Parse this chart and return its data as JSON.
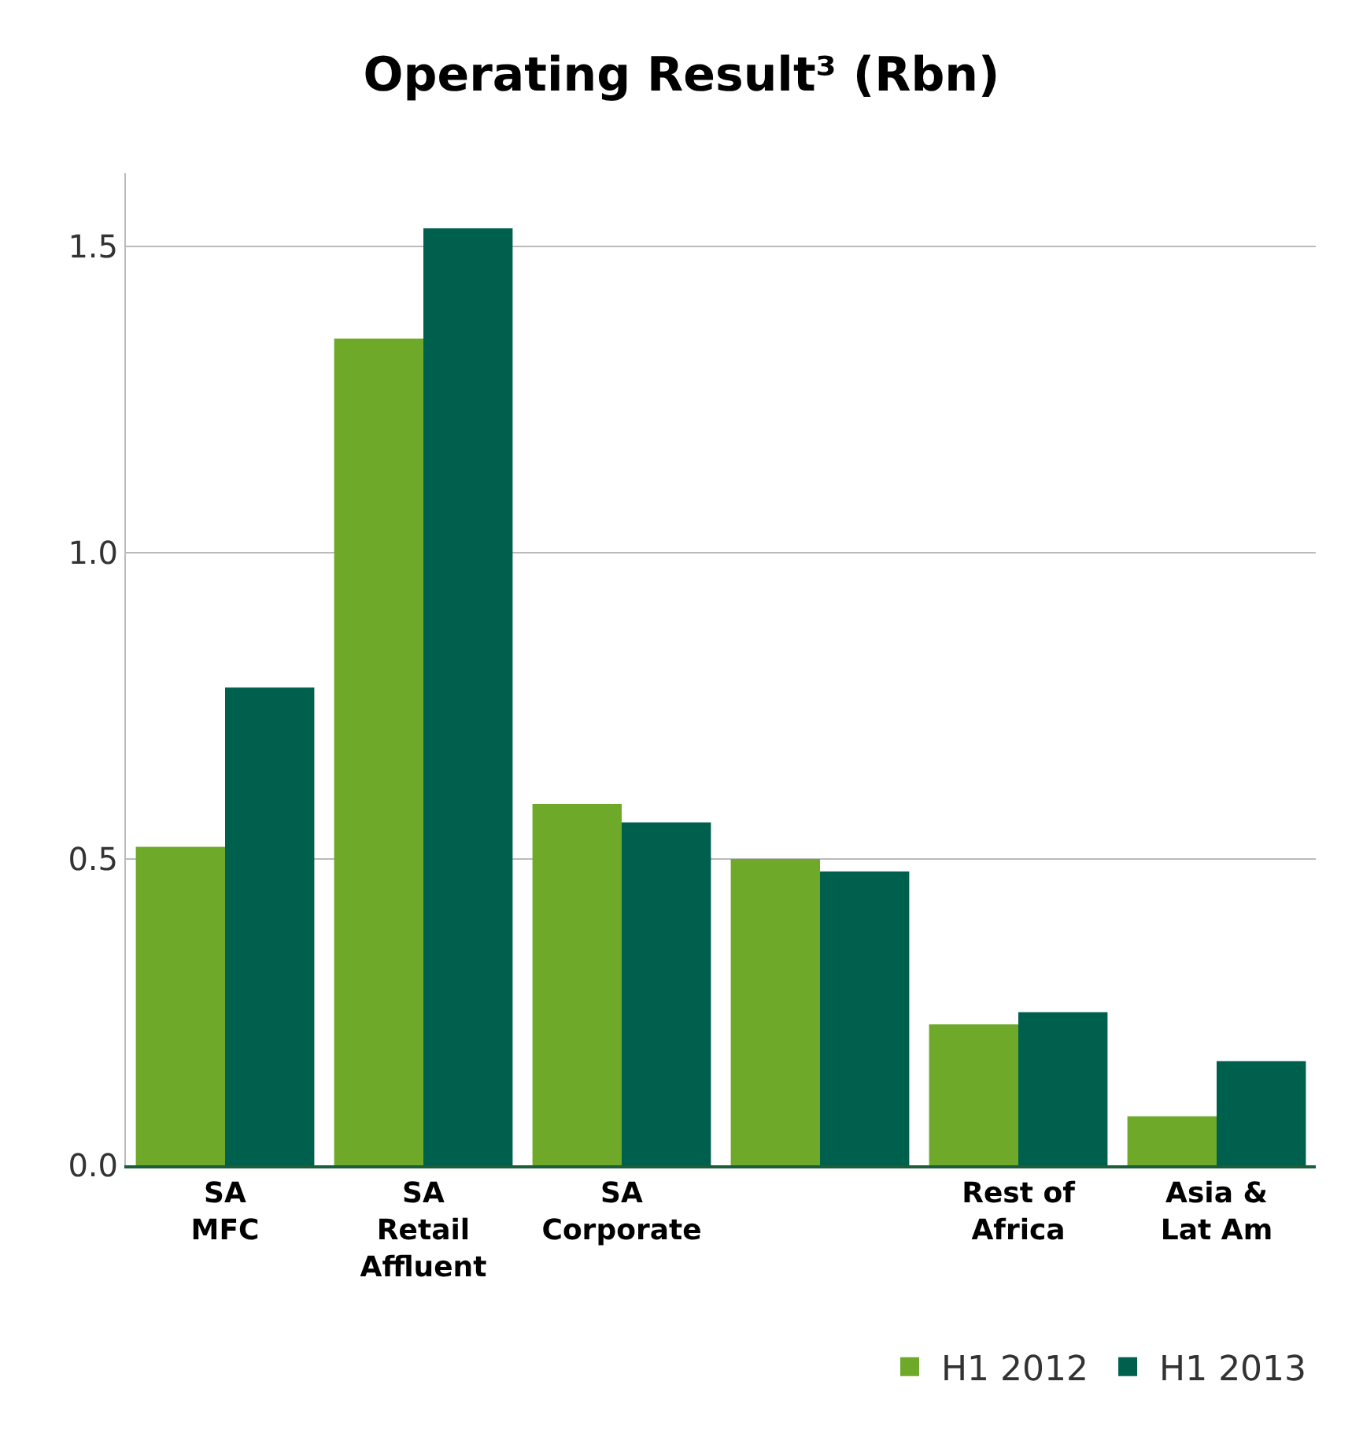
{
  "chart_data": {
    "type": "bar",
    "title": "Operating Result³ (Rbn)",
    "categories": [
      "SA\nMFC",
      "SA\nRetail\nAffluent",
      "SA\nCorporate",
      null,
      "Rest of\nAfrica",
      "Asia &\nLat Am"
    ],
    "series": [
      {
        "name": "H1 2012",
        "color": "#6fa92a",
        "values": [
          0.52,
          1.35,
          0.59,
          0.5,
          0.23,
          0.08
        ]
      },
      {
        "name": "H1 2013",
        "color": "#00604e",
        "values": [
          0.78,
          1.53,
          0.56,
          0.48,
          0.25,
          0.17
        ]
      }
    ],
    "ylim": [
      0,
      1.62
    ],
    "yticks": [
      {
        "value": 0,
        "label": "0.0"
      },
      {
        "value": 0.5,
        "label": "0.5"
      },
      {
        "value": 1,
        "label": "1.0"
      },
      {
        "value": 1.5,
        "label": "1.5"
      }
    ],
    "grid": "y",
    "legend": "bottom right"
  }
}
